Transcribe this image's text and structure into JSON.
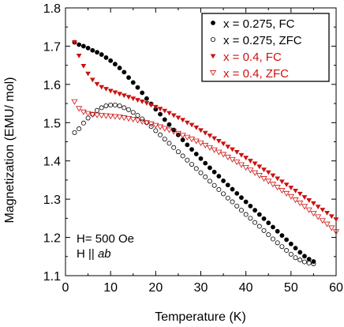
{
  "chart_data": {
    "type": "scatter",
    "title": "",
    "xlabel": "Temperature (K)",
    "ylabel": "Magnetization (EMU/ mol)",
    "xlim": [
      0,
      60
    ],
    "ylim": [
      1.1,
      1.8
    ],
    "xticks": [
      "0",
      "10",
      "20",
      "30",
      "40",
      "50",
      "60"
    ],
    "yticks": [
      "1.1",
      "1.2",
      "1.3",
      "1.4",
      "1.5",
      "1.6",
      "1.7",
      "1.8"
    ],
    "grid": false,
    "legend_position": "top-right",
    "annotations": [
      {
        "parts": [
          {
            "text": "H= 500 Oe",
            "italic": false
          }
        ]
      },
      {
        "parts": [
          {
            "text": "H || ",
            "italic": false
          },
          {
            "text": "ab",
            "italic": true
          }
        ]
      }
    ],
    "series": [
      {
        "name": "x = 0.275, FC",
        "color": "#000000",
        "marker": "circle-filled",
        "x": [
          2,
          3,
          4,
          5,
          6,
          7,
          8,
          9,
          10,
          11,
          12,
          13,
          14,
          15,
          16,
          17,
          18,
          19,
          20,
          21,
          22,
          23,
          24,
          25,
          26,
          27,
          28,
          29,
          30,
          31,
          32,
          33,
          34,
          35,
          36,
          37,
          38,
          39,
          40,
          41,
          42,
          43,
          44,
          45,
          46,
          47,
          48,
          49,
          50,
          51,
          52,
          53,
          54,
          55
        ],
        "y": [
          1.71,
          1.704,
          1.7,
          1.695,
          1.689,
          1.684,
          1.678,
          1.67,
          1.662,
          1.653,
          1.643,
          1.632,
          1.618,
          1.605,
          1.592,
          1.578,
          1.563,
          1.549,
          1.535,
          1.522,
          1.508,
          1.495,
          1.481,
          1.468,
          1.455,
          1.442,
          1.43,
          1.418,
          1.406,
          1.394,
          1.382,
          1.371,
          1.36,
          1.348,
          1.337,
          1.326,
          1.315,
          1.304,
          1.293,
          1.282,
          1.271,
          1.26,
          1.249,
          1.238,
          1.227,
          1.216,
          1.205,
          1.194,
          1.183,
          1.172,
          1.161,
          1.151,
          1.143,
          1.137
        ]
      },
      {
        "name": "x = 0.275, ZFC",
        "color": "#000000",
        "marker": "circle-open",
        "x": [
          2,
          3,
          4,
          5,
          6,
          7,
          8,
          9,
          10,
          11,
          12,
          13,
          14,
          15,
          16,
          17,
          18,
          19,
          20,
          21,
          22,
          23,
          24,
          25,
          26,
          27,
          28,
          29,
          30,
          31,
          32,
          33,
          34,
          35,
          36,
          37,
          38,
          39,
          40,
          41,
          42,
          43,
          44,
          45,
          46,
          47,
          48,
          49,
          50,
          51,
          52,
          53,
          54,
          55
        ],
        "y": [
          1.474,
          1.484,
          1.499,
          1.512,
          1.522,
          1.532,
          1.539,
          1.544,
          1.546,
          1.546,
          1.544,
          1.539,
          1.534,
          1.527,
          1.519,
          1.51,
          1.5,
          1.49,
          1.479,
          1.468,
          1.457,
          1.446,
          1.435,
          1.424,
          1.413,
          1.402,
          1.391,
          1.38,
          1.369,
          1.358,
          1.347,
          1.336,
          1.325,
          1.314,
          1.303,
          1.293,
          1.282,
          1.271,
          1.26,
          1.25,
          1.239,
          1.229,
          1.218,
          1.207,
          1.196,
          1.186,
          1.176,
          1.166,
          1.156,
          1.147,
          1.141,
          1.136,
          1.133,
          1.131
        ]
      },
      {
        "name": "x = 0.4, FC",
        "color": "#cc1111",
        "marker": "triangle-down-filled",
        "x": [
          2,
          3,
          4,
          5,
          6,
          7,
          8,
          9,
          10,
          11,
          12,
          13,
          14,
          15,
          16,
          17,
          18,
          19,
          20,
          21,
          22,
          23,
          24,
          25,
          26,
          27,
          28,
          29,
          30,
          31,
          32,
          33,
          34,
          35,
          36,
          37,
          38,
          39,
          40,
          41,
          42,
          43,
          44,
          45,
          46,
          47,
          48,
          49,
          50,
          51,
          52,
          53,
          54,
          55,
          56,
          57,
          58,
          59,
          60
        ],
        "y": [
          1.71,
          1.675,
          1.648,
          1.628,
          1.612,
          1.601,
          1.593,
          1.588,
          1.583,
          1.579,
          1.575,
          1.571,
          1.567,
          1.563,
          1.559,
          1.555,
          1.551,
          1.546,
          1.541,
          1.536,
          1.531,
          1.525,
          1.519,
          1.513,
          1.507,
          1.5,
          1.494,
          1.487,
          1.48,
          1.473,
          1.466,
          1.459,
          1.452,
          1.445,
          1.437,
          1.43,
          1.423,
          1.415,
          1.408,
          1.4,
          1.393,
          1.385,
          1.377,
          1.37,
          1.362,
          1.354,
          1.346,
          1.338,
          1.33,
          1.322,
          1.314,
          1.305,
          1.297,
          1.289,
          1.28,
          1.272,
          1.264,
          1.255,
          1.247
        ]
      },
      {
        "name": "x = 0.4, ZFC",
        "color": "#cc1111",
        "marker": "triangle-down-open",
        "x": [
          2,
          3,
          4,
          5,
          6,
          7,
          8,
          9,
          10,
          11,
          12,
          13,
          14,
          15,
          16,
          17,
          18,
          19,
          20,
          21,
          22,
          23,
          24,
          25,
          26,
          27,
          28,
          29,
          30,
          31,
          32,
          33,
          34,
          35,
          36,
          37,
          38,
          39,
          40,
          41,
          42,
          43,
          44,
          45,
          46,
          47,
          48,
          49,
          50,
          51,
          52,
          53,
          54,
          55,
          56,
          57,
          58,
          59,
          60
        ],
        "y": [
          1.555,
          1.537,
          1.528,
          1.524,
          1.521,
          1.52,
          1.519,
          1.518,
          1.517,
          1.516,
          1.515,
          1.513,
          1.511,
          1.509,
          1.506,
          1.503,
          1.5,
          1.497,
          1.493,
          1.489,
          1.485,
          1.481,
          1.477,
          1.472,
          1.467,
          1.462,
          1.457,
          1.452,
          1.447,
          1.441,
          1.435,
          1.429,
          1.423,
          1.417,
          1.41,
          1.404,
          1.397,
          1.39,
          1.383,
          1.376,
          1.369,
          1.362,
          1.354,
          1.347,
          1.339,
          1.331,
          1.323,
          1.315,
          1.307,
          1.298,
          1.29,
          1.281,
          1.272,
          1.263,
          1.254,
          1.244,
          1.235,
          1.225,
          1.215
        ]
      }
    ]
  }
}
